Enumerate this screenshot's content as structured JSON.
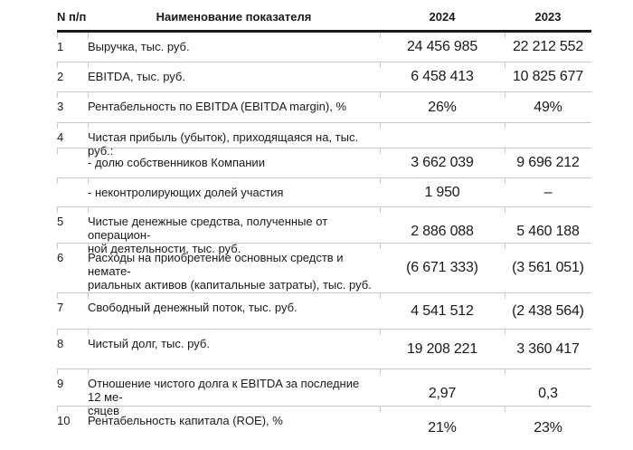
{
  "table": {
    "header": {
      "col_num": "N п/п",
      "col_name": "Наименование показателя",
      "col_2024": "2024",
      "col_2023": "2023"
    },
    "rows": [
      {
        "num": "1",
        "label": "Выручка, тыс. руб.",
        "v2024": "24 456 985",
        "v2023": "22 212 552"
      },
      {
        "num": "2",
        "label": "EBITDA, тыс. руб.",
        "v2024": "6 458 413",
        "v2023": "10 825 677"
      },
      {
        "num": "3",
        "label": "Рентабельность по EBITDA (EBITDA margin), %",
        "v2024": "26%",
        "v2023": "49%"
      },
      {
        "num": "4",
        "label": "Чистая прибыль (убыток), приходящаяся на, тыс. руб.:",
        "v2024": "",
        "v2023": ""
      },
      {
        "num": "",
        "label": "- долю собственников Компании",
        "v2024": "3 662 039",
        "v2023": "9 696 212"
      },
      {
        "num": "",
        "label": "- неконтролирующих долей участия",
        "v2024": "1 950",
        "v2023": "–"
      },
      {
        "num": "5",
        "label": "Чистые денежные средства, полученные от операцион-\nной деятельности, тыс. руб.",
        "v2024": "2 886 088",
        "v2023": "5 460 188"
      },
      {
        "num": "6",
        "label": "Расходы на приобретение основных средств и немате-\nриальных активов (капитальные затраты), тыс. руб.",
        "v2024": "(6 671 333)",
        "v2023": "(3 561 051)"
      },
      {
        "num": "7",
        "label": "Свободный денежный поток, тыс. руб.",
        "v2024": "4 541 512",
        "v2023": "(2 438 564)"
      },
      {
        "num": "8",
        "label": "Чистый долг, тыс. руб.",
        "v2024": "19 208 221",
        "v2023": "3 360 417"
      },
      {
        "num": "9",
        "label": "Отношение чистого долга к EBITDA за последние 12 ме-\nсяцев",
        "v2024": "2,97",
        "v2023": "0,3"
      },
      {
        "num": "10",
        "label": "Рентабельность капитала (ROE), %",
        "v2024": "21%",
        "v2023": "23%"
      }
    ],
    "colors": {
      "text": "#1a1a1a",
      "header_rule": "#1a1a1a",
      "divider": "#c9c9c9"
    }
  }
}
